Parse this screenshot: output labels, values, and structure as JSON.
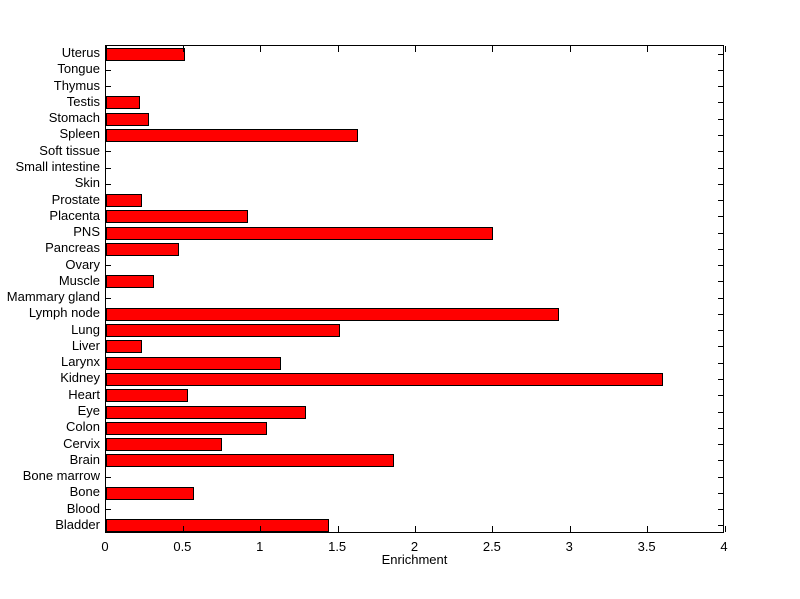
{
  "chart_data": {
    "type": "bar",
    "orientation": "horizontal",
    "title": "",
    "xlabel": "Enrichment",
    "ylabel": "",
    "grid": false,
    "legend": "none",
    "background_color": "#FFFFFF",
    "bar_color": "#FF0000",
    "bar_edge_color": "#000000",
    "axis_color": "#000000",
    "xlim": [
      0,
      4
    ],
    "xticks": [
      0,
      0.5,
      1,
      1.5,
      2,
      2.5,
      3,
      3.5,
      4
    ],
    "xtick_labels": [
      "0",
      "0.5",
      "1",
      "1.5",
      "2",
      "2.5",
      "3",
      "3.5",
      "4"
    ],
    "categories_top_to_bottom": [
      "Uterus",
      "Tongue",
      "Thymus",
      "Testis",
      "Stomach",
      "Spleen",
      "Soft tissue",
      "Small intestine",
      "Skin",
      "Prostate",
      "Placenta",
      "PNS",
      "Pancreas",
      "Ovary",
      "Muscle",
      "Mammary gland",
      "Lymph node",
      "Lung",
      "Liver",
      "Larynx",
      "Kidney",
      "Heart",
      "Eye",
      "Colon",
      "Cervix",
      "Brain",
      "Bone marrow",
      "Bone",
      "Blood",
      "Bladder"
    ],
    "values": [
      0.51,
      0,
      0,
      0.22,
      0.28,
      1.63,
      0,
      0,
      0,
      0.23,
      0.92,
      2.5,
      0.47,
      0,
      0.31,
      0,
      2.93,
      1.51,
      0.23,
      1.13,
      3.6,
      0.53,
      1.29,
      1.04,
      0.75,
      1.86,
      0,
      0.57,
      0,
      1.44
    ]
  }
}
